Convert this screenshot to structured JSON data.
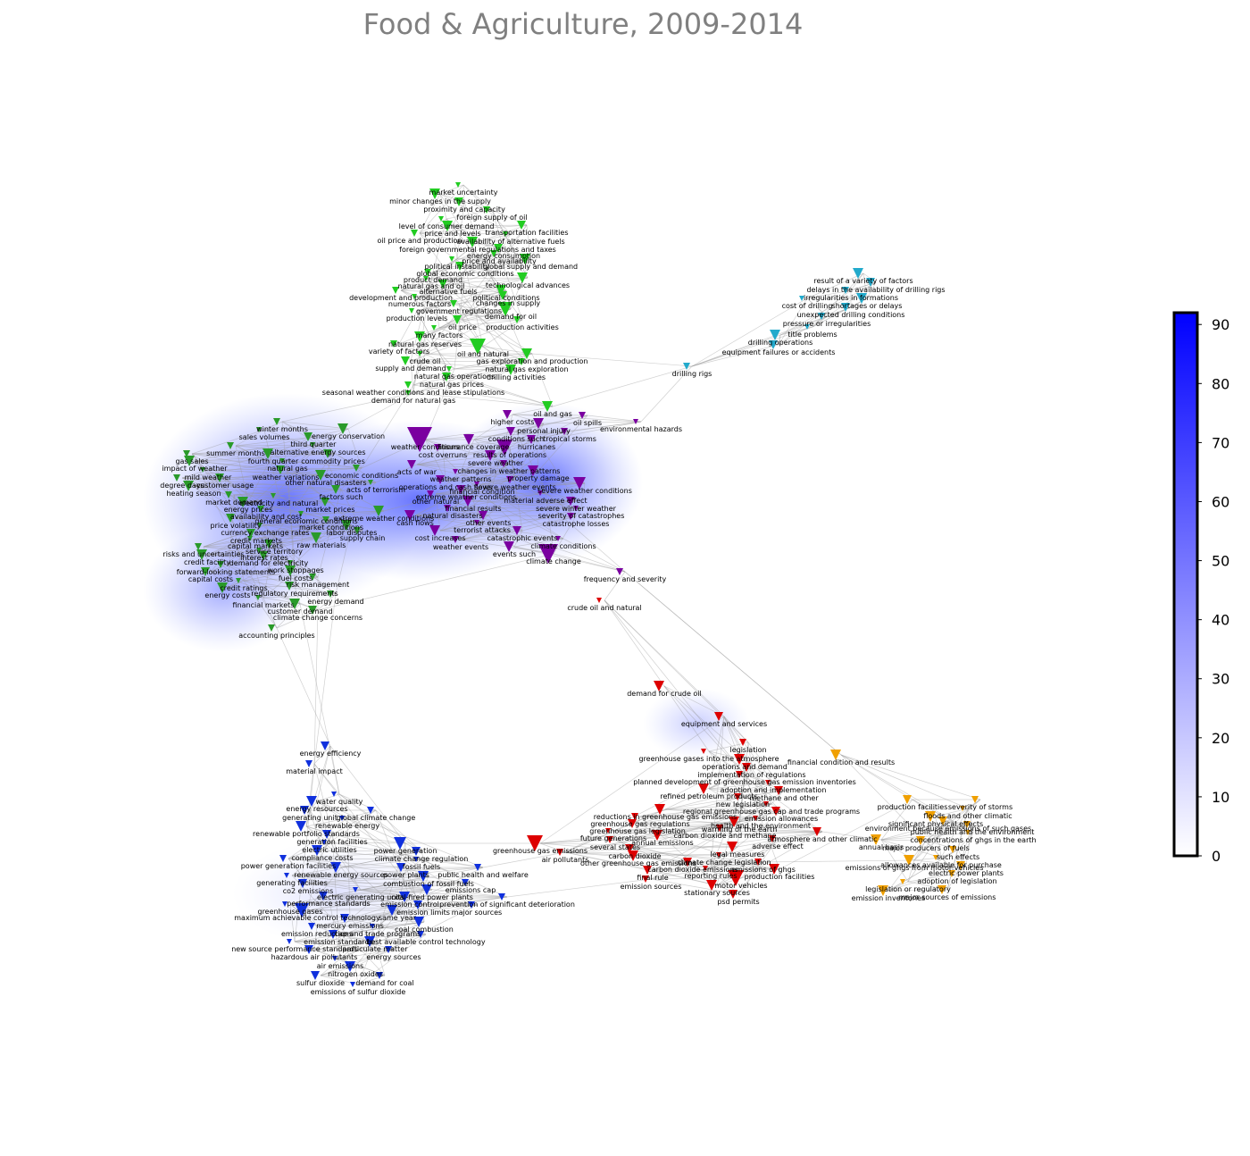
{
  "title": "Food & Agriculture, 2009-2014",
  "clusters": [
    {
      "color": "#22cc22",
      "nodes": [
        "market uncertainty",
        "minor changes in the supply",
        "proximity and capacity",
        "foreign supply of oil",
        "level of consumer demand",
        "price and levels",
        "transportation facilities",
        "oil price and production",
        "availability of alternative fuels",
        "foreign governmental regulations and taxes",
        "energy consumption",
        "price and availability",
        "political instability",
        "global supply and demand",
        "global economic conditions",
        "product demand",
        "natural gas and oil",
        "technological advances",
        "alternative fuels",
        "development and production",
        "numerous factors",
        "political conditions",
        "changes in supply",
        "government regulations",
        "production levels",
        "demand for oil",
        "oil price",
        "production activities",
        "many factors",
        "natural gas reserves",
        "oil and natural",
        "variety of factors",
        "crude oil",
        "gas exploration and production",
        "supply and demand",
        "natural gas exploration",
        "natural gas operations",
        "drilling activities",
        "natural gas prices",
        "seasonal weather conditions and lease stipulations",
        "demand for natural gas",
        "oil and gas"
      ]
    },
    {
      "color": "#22aacc",
      "nodes": [
        "result of a variety of factors",
        "delays in the availability of drilling rigs",
        "irregularities in formations",
        "cost of drilling",
        "shortages or delays",
        "unexpected drilling conditions",
        "pressure or irregularities",
        "title problems",
        "drilling operations",
        "equipment failures or accidents",
        "drilling rigs"
      ]
    },
    {
      "color": "#7a00a0",
      "nodes": [
        "higher costs",
        "oil spills",
        "environmental hazards",
        "personal injury",
        "conditions such",
        "tropical storms",
        "weather conditions",
        "insurance coverage",
        "hurricanes",
        "cost overruns",
        "results of operations",
        "severe weather",
        "acts of war",
        "changes in weather patterns",
        "weather patterns",
        "property damage",
        "operations and cash flows",
        "severe weather events",
        "financial condition",
        "severe weather conditions",
        "extreme weather conditions",
        "other natural",
        "material adverse effect",
        "financial results",
        "severe winter weather",
        "natural disasters",
        "severity of catastrophes",
        "cash flows",
        "other events",
        "catastrophe losses",
        "terrorist attacks",
        "cost increases",
        "catastrophic events",
        "weather events",
        "climate conditions",
        "events such",
        "climate change",
        "frequency and severity"
      ]
    },
    {
      "color": "#2a9a2a",
      "nodes": [
        "winter months",
        "sales volumes",
        "energy conservation",
        "third quarter",
        "summer months",
        "alternative energy sources",
        "fourth quarter",
        "commodity prices",
        "gas sales",
        "natural gas",
        "impact of weather",
        "weather variations",
        "economic conditions",
        "mild weather",
        "other natural disasters",
        "customer usage",
        "degree days",
        "acts of terrorism",
        "heating season",
        "factors such",
        "market demand",
        "electricity and natural",
        "energy prices",
        "market prices",
        "availability and cost",
        "general economic conditions",
        "extreme weather conditions",
        "price volatility",
        "market conditions",
        "currency exchange rates",
        "labor disputes",
        "credit markets",
        "supply chain",
        "capital markets",
        "raw materials",
        "service territory",
        "risks and uncertainties",
        "interest rates",
        "credit facility",
        "demand for electricity",
        "forward-looking statements",
        "work stoppages",
        "fuel costs",
        "capital costs",
        "risk management",
        "credit ratings",
        "energy costs",
        "regulatory requirements",
        "energy demand",
        "financial markets",
        "customer demand",
        "climate change concerns",
        "accounting principles"
      ]
    },
    {
      "color": "#dd0000",
      "nodes": [
        "crude oil and natural",
        "demand for crude oil",
        "equipment and services",
        "legislation",
        "greenhouse gases into the atmosphere",
        "operations and demand",
        "implementation of regulations",
        "planned development of greenhouse gas emission inventories",
        "adoption and implementation",
        "refined petroleum products",
        "methane and other",
        "new legislation",
        "regional greenhouse gas cap and trade programs",
        "reductions in greenhouse gas emissions",
        "emission allowances",
        "greenhouse gas regulations",
        "health and the environment",
        "warming of the earth",
        "greenhouse gas legislation",
        "carbon dioxide and methane",
        "future generations",
        "annual emissions",
        "atmosphere and other climatic",
        "several states",
        "greenhouse gas emissions",
        "legal measures",
        "carbon dioxide",
        "air pollutants",
        "climate change legislation",
        "other greenhouse gas emissions",
        "carbon dioxide emissions",
        "emissions of ghgs",
        "reporting rules",
        "production facilities",
        "final rule",
        "emission sources",
        "motor vehicles",
        "stationary sources",
        "psd permits",
        "adverse effect"
      ]
    },
    {
      "color": "#f0a000",
      "nodes": [
        "financial condition and results",
        "production facilities",
        "severity of storms",
        "floods and other climatic",
        "significant physical effects",
        "environment because emissions of such gases",
        "public health and the environment",
        "concentrations of ghgs in the earth",
        "annual basis",
        "major producers of fuels",
        "such effects",
        "allowances available for purchase",
        "emissions of ghgs from motor vehicles",
        "electric power plants",
        "adoption of legislation",
        "legislation or regulatory",
        "emission inventories",
        "major sources of emissions"
      ]
    },
    {
      "color": "#1030dd",
      "nodes": [
        "energy efficiency",
        "material impact",
        "water quality",
        "energy resources",
        "generating unit",
        "global climate change",
        "renewable energy",
        "renewable portfolio standards",
        "generation facilities",
        "power generation",
        "electric utilities",
        "compliance costs",
        "climate change regulation",
        "power generation facilities",
        "fossil fuels",
        "renewable energy sources",
        "power plants",
        "public health and welfare",
        "generating facilities",
        "combustion of fossil fuels",
        "co2 emissions",
        "emissions cap",
        "electric generating units",
        "coal-fired power plants",
        "performance standards",
        "prevention of significant deterioration",
        "greenhouse gases",
        "emission control",
        "emission limits",
        "major sources",
        "maximum achievable control technology",
        "same year",
        "mercury emissions",
        "emission reductions",
        "cap and trade programs",
        "coal combustion",
        "emission standards",
        "best available control technology",
        "new source performance standards",
        "particulate matter",
        "hazardous air pollutants",
        "energy sources",
        "air emissions",
        "nitrogen oxides",
        "sulfur dioxide",
        "demand for coal",
        "emissions of sulfur dioxide"
      ]
    }
  ],
  "colorbar": {
    "range": [
      0,
      92
    ],
    "ticks": [
      0,
      10,
      20,
      30,
      40,
      50,
      60,
      70,
      80,
      90
    ]
  }
}
